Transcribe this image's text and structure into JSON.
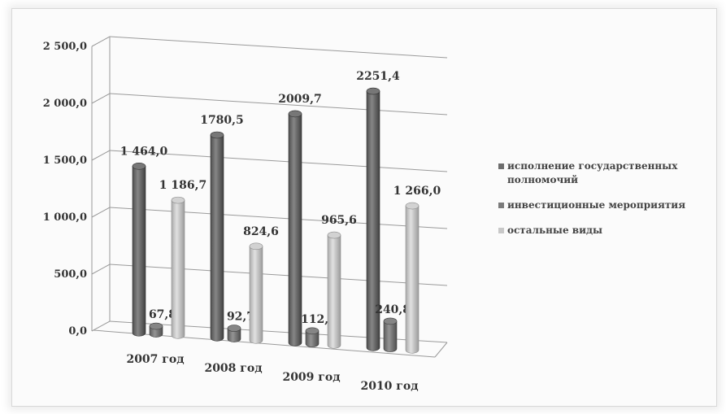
{
  "chart_data": {
    "type": "bar",
    "categories": [
      "2007 год",
      "2008 год",
      "2009 год",
      "2010 год"
    ],
    "series": [
      {
        "name": "исполнение государственных полномочий",
        "values": [
          1464.0,
          1780.5,
          2009.7,
          2251.4
        ],
        "labels": [
          "1 464,0",
          "1780,5",
          "2009,7",
          "2251,4"
        ],
        "color": "#6d6d6d"
      },
      {
        "name": "инвестиционные мероприятия",
        "values": [
          67.8,
          92.7,
          112.8,
          240.89
        ],
        "labels": [
          "67,8",
          "92,7",
          "112,8",
          "240,89"
        ],
        "color": "#7b7b7b"
      },
      {
        "name": "остальные виды",
        "values": [
          1186.7,
          824.6,
          965.6,
          1266.0
        ],
        "labels": [
          "1 186,7",
          "824,6",
          "965,6",
          "1 266,0"
        ],
        "color": "#c8c8c8"
      }
    ],
    "yticks": [
      "0,0",
      "500,0",
      "1 000,0",
      "1 500,0",
      "2 000,0",
      "2 500,0"
    ],
    "ylim": [
      0,
      2500
    ],
    "legend_position": "right",
    "grid": true
  }
}
